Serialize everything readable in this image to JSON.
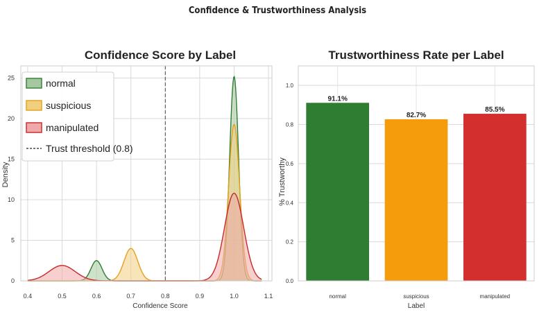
{
  "figure": {
    "suptitle": "Confidence & Trustworthiness Analysis"
  },
  "chart_data": [
    {
      "type": "area",
      "title": "Confidence Score by Label",
      "xlabel": "Confidence Score",
      "ylabel": "Density",
      "xlim": [
        0.38,
        1.11
      ],
      "ylim": [
        0,
        26.5
      ],
      "xticks": [
        0.4,
        0.5,
        0.6,
        0.7,
        0.8,
        0.9,
        1.0,
        1.1
      ],
      "xtick_labels": [
        "0.4",
        "0.5",
        "0.6",
        "0.7",
        "0.8",
        "0.9",
        "1.0",
        "1.1"
      ],
      "yticks": [
        0,
        5,
        10,
        15,
        20,
        25
      ],
      "ytick_labels": [
        "0",
        "5",
        "10",
        "15",
        "20",
        "25"
      ],
      "grid": true,
      "legend": "top-left",
      "threshold": {
        "x": 0.8,
        "label": "Trust threshold (0.8)",
        "style": "dashed"
      },
      "series": [
        {
          "name": "normal",
          "color": "#2e7d32",
          "fill": "#a5c8a0",
          "peaks": [
            {
              "mu": 0.6,
              "sigma": 0.016,
              "height": 2.5
            },
            {
              "mu": 1.0,
              "sigma": 0.013,
              "height": 25.2
            }
          ]
        },
        {
          "name": "suspicious",
          "color": "#e6a01c",
          "fill": "#f1cf7f",
          "peaks": [
            {
              "mu": 0.7,
              "sigma": 0.02,
              "height": 4.0
            },
            {
              "mu": 1.0,
              "sigma": 0.016,
              "height": 19.3
            }
          ]
        },
        {
          "name": "manipulated",
          "color": "#c62828",
          "fill": "#f0a8a8",
          "peaks": [
            {
              "mu": 0.5,
              "sigma": 0.038,
              "height": 1.9
            },
            {
              "mu": 1.0,
              "sigma": 0.028,
              "height": 10.8
            }
          ]
        }
      ]
    },
    {
      "type": "bar",
      "title": "Trustworthiness Rate per Label",
      "xlabel": "Label",
      "ylabel": "% Trustworthy",
      "ylim": [
        0,
        1.1
      ],
      "yticks": [
        0.0,
        0.2,
        0.4,
        0.6,
        0.8,
        1.0
      ],
      "ytick_labels": [
        "0.0",
        "0.2",
        "0.4",
        "0.6",
        "0.8",
        "1.0"
      ],
      "grid": true,
      "categories": [
        "normal",
        "suspicious",
        "manipulated"
      ],
      "values": [
        0.911,
        0.827,
        0.855
      ],
      "value_labels": [
        "91.1%",
        "82.7%",
        "85.5%"
      ],
      "colors": [
        "#2e7d32",
        "#f59c0c",
        "#d32f2f"
      ]
    }
  ]
}
